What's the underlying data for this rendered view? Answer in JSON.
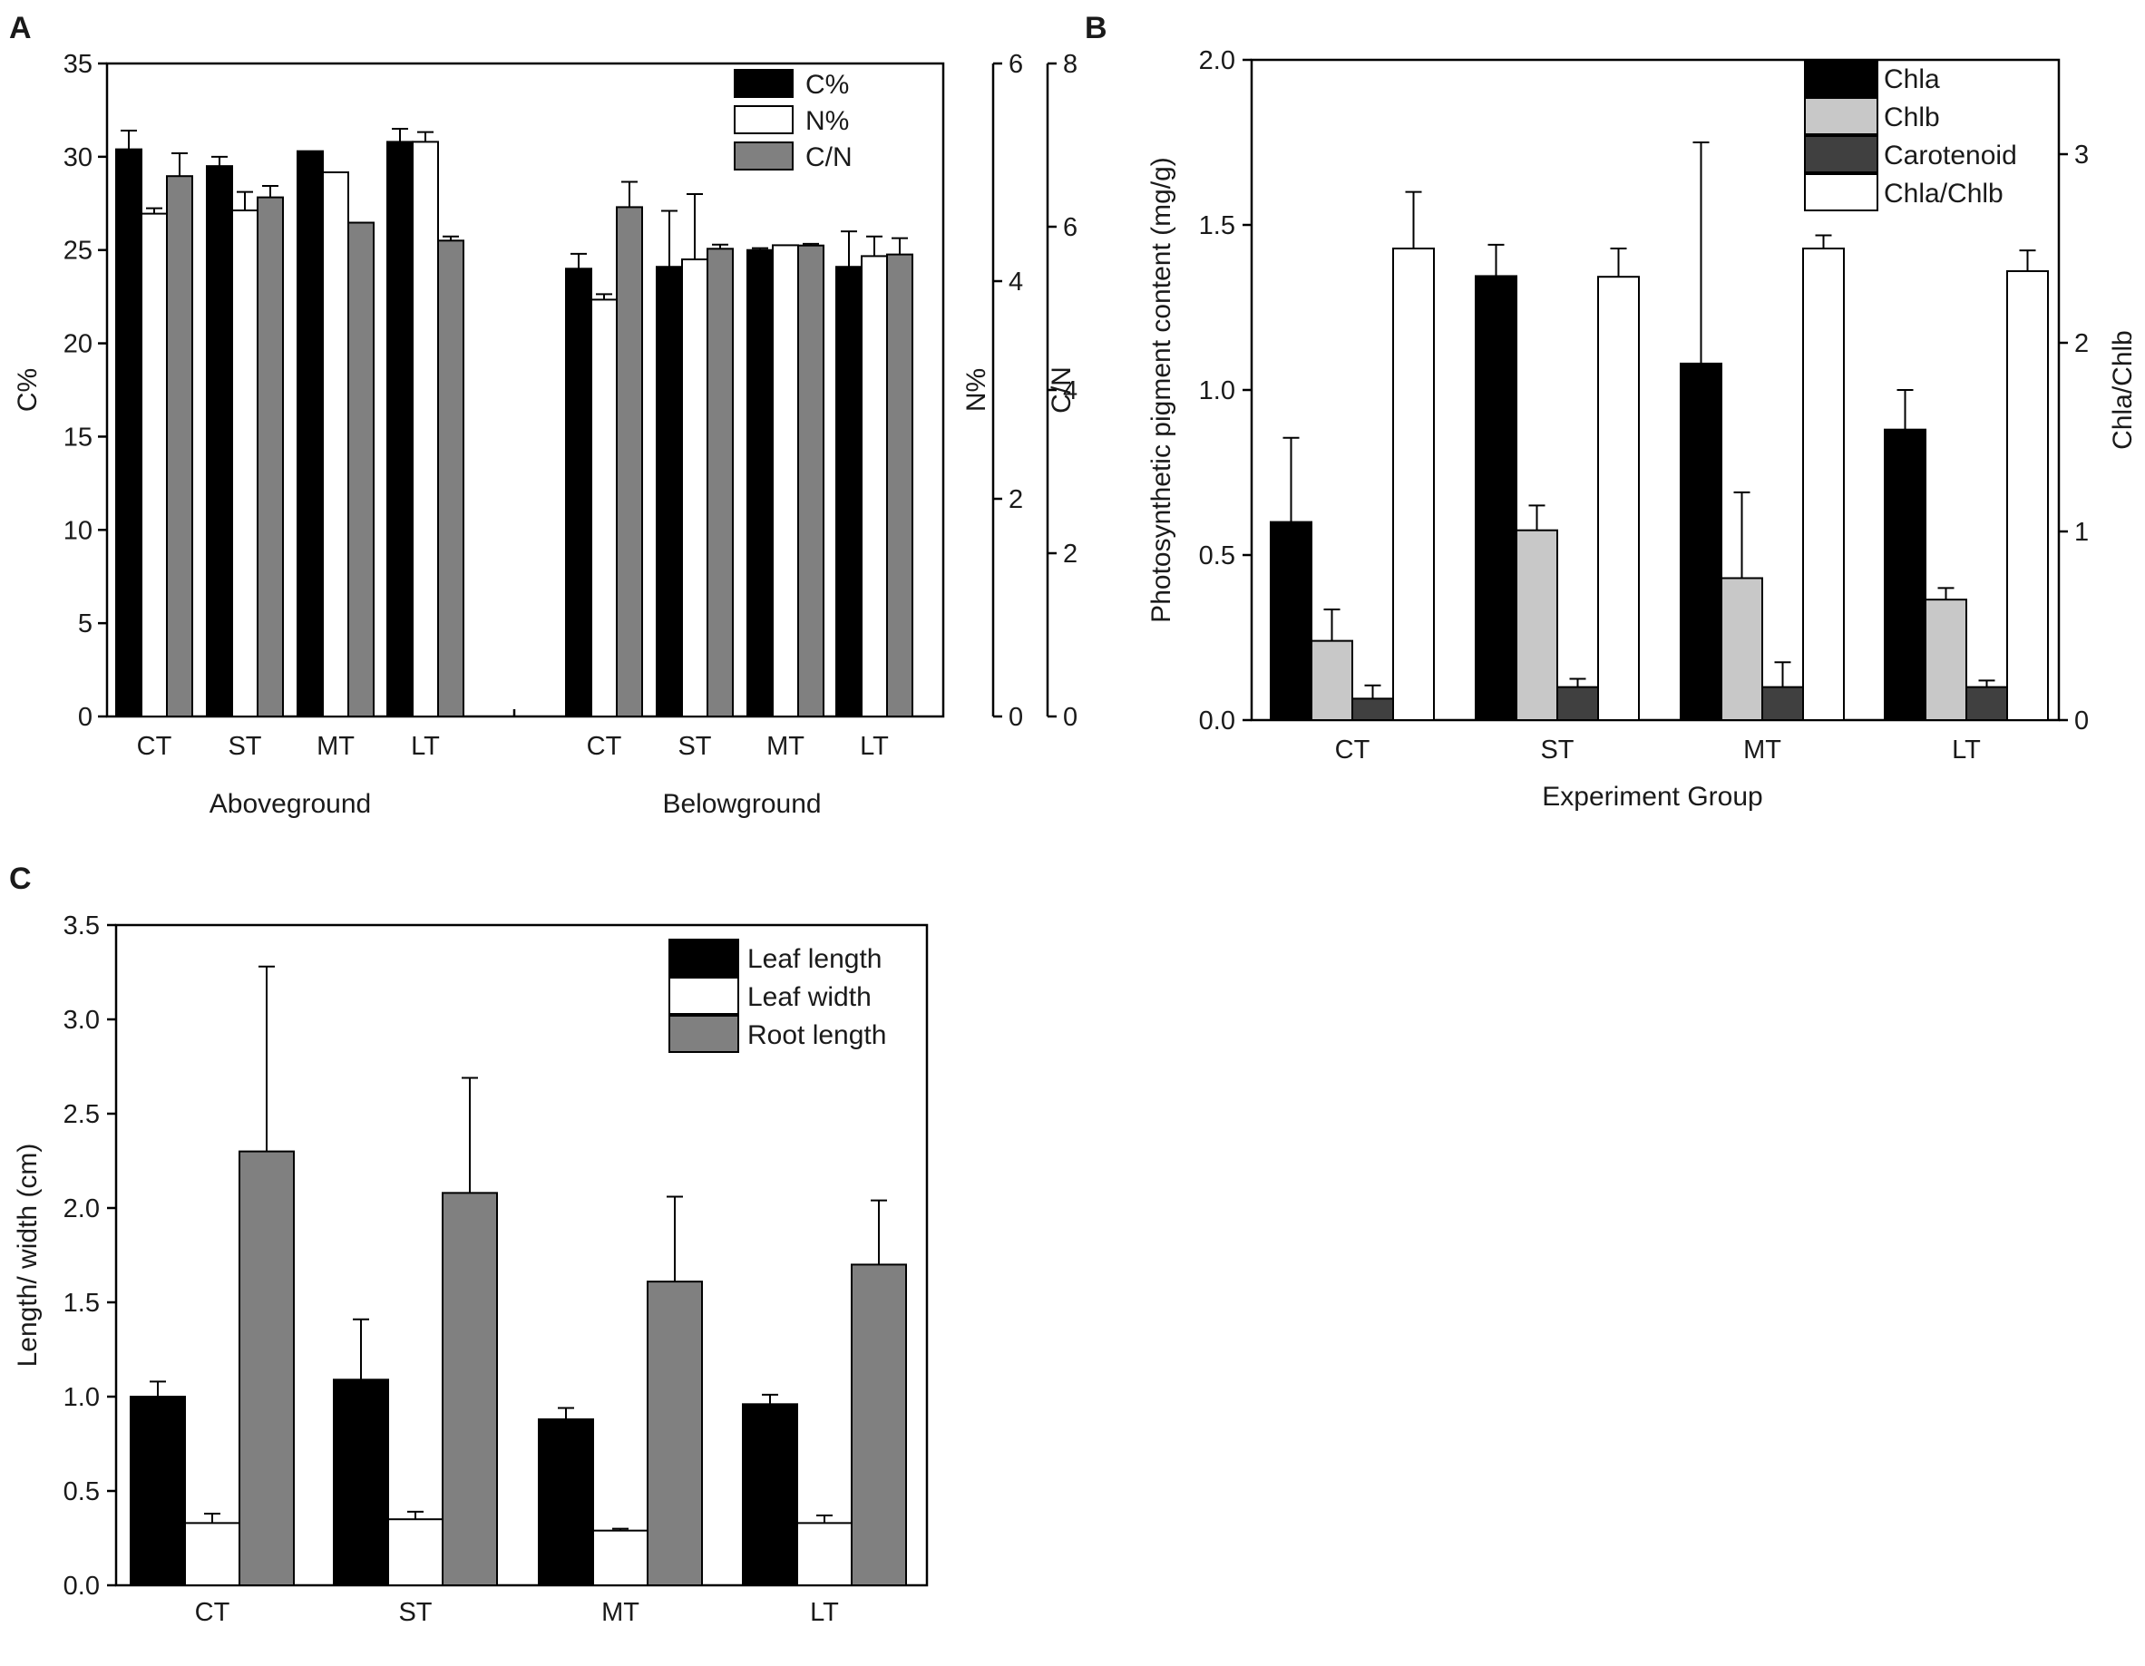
{
  "chart_data": [
    {
      "panel": "A",
      "type": "bar",
      "groups": [
        {
          "label": "Aboveground",
          "categories": [
            "CT",
            "ST",
            "MT",
            "LT"
          ]
        },
        {
          "label": "Belowground",
          "categories": [
            "CT",
            "ST",
            "MT",
            "LT"
          ]
        }
      ],
      "series": [
        {
          "name": "C%",
          "axis": "C%",
          "color": "#000000",
          "values": [
            30.4,
            29.5,
            30.3,
            30.8,
            24.0,
            24.1,
            25.0,
            24.1
          ],
          "errors": [
            1.0,
            0.5,
            0.0,
            0.7,
            0.8,
            3.0,
            0.1,
            1.9
          ]
        },
        {
          "name": "N%",
          "axis": "N%",
          "color": "#ffffff",
          "values": [
            4.62,
            4.65,
            5.0,
            5.28,
            3.83,
            4.2,
            4.33,
            4.23
          ],
          "errors": [
            0.05,
            0.17,
            0.0,
            0.09,
            0.05,
            0.6,
            0.0,
            0.18
          ]
        },
        {
          "name": "C/N",
          "axis": "C/N",
          "color": "#808080",
          "values": [
            6.62,
            6.36,
            6.05,
            5.83,
            6.24,
            5.73,
            5.77,
            5.66
          ],
          "errors": [
            0.28,
            0.14,
            0.0,
            0.05,
            0.31,
            0.05,
            0.02,
            0.2
          ]
        }
      ],
      "axes": {
        "left": {
          "label": "C%",
          "ylim": [
            0,
            35
          ],
          "ticks": [
            "0",
            "5",
            "10",
            "15",
            "20",
            "25",
            "30",
            "35"
          ]
        },
        "right1": {
          "label": "N%",
          "ylim": [
            0,
            6
          ],
          "ticks": [
            "0",
            "2",
            "4",
            "6"
          ]
        },
        "right2": {
          "label": "C/N",
          "ylim": [
            0,
            8
          ],
          "ticks": [
            "0",
            "2",
            "4",
            "6",
            "8"
          ]
        }
      },
      "legend_position": "top-right"
    },
    {
      "panel": "B",
      "type": "bar",
      "categories": [
        "CT",
        "ST",
        "MT",
        "LT"
      ],
      "series": [
        {
          "name": "Chla",
          "axis": "left",
          "color": "#000000",
          "values": [
            0.6,
            1.345,
            1.08,
            0.88
          ],
          "errors": [
            0.255,
            0.095,
            0.67,
            0.12
          ]
        },
        {
          "name": "Chlb",
          "axis": "left",
          "color": "#c8c8c8",
          "values": [
            0.24,
            0.575,
            0.43,
            0.365
          ],
          "errors": [
            0.095,
            0.075,
            0.26,
            0.035
          ]
        },
        {
          "name": "Carotenoid",
          "axis": "left",
          "color": "#404040",
          "values": [
            0.065,
            0.1,
            0.1,
            0.1
          ],
          "errors": [
            0.04,
            0.025,
            0.075,
            0.02
          ]
        },
        {
          "name": "Chla/Chlb",
          "axis": "right",
          "color": "#ffffff",
          "values": [
            2.5,
            2.35,
            2.5,
            2.38
          ],
          "errors": [
            0.3,
            0.15,
            0.07,
            0.11
          ]
        }
      ],
      "xlabel": "Experiment Group",
      "ylabel": "Photosynthetic pigment content (mg/g)",
      "ylabel_right": "Chla/Chlb",
      "ylim": [
        0,
        2.0
      ],
      "ylim_right": [
        0,
        3.5
      ],
      "yticks": [
        "0.0",
        "0.5",
        "1.0",
        "1.5",
        "2.0"
      ],
      "yticks_right": [
        "0",
        "1",
        "2",
        "3"
      ],
      "legend_position": "top-right"
    },
    {
      "panel": "C",
      "type": "bar",
      "categories": [
        "CT",
        "ST",
        "MT",
        "LT"
      ],
      "series": [
        {
          "name": "Leaf length",
          "color": "#000000",
          "values": [
            1.0,
            1.09,
            0.88,
            0.96
          ],
          "errors": [
            0.08,
            0.32,
            0.06,
            0.05
          ]
        },
        {
          "name": "Leaf width",
          "color": "#ffffff",
          "values": [
            0.33,
            0.35,
            0.29,
            0.33
          ],
          "errors": [
            0.05,
            0.04,
            0.01,
            0.04
          ]
        },
        {
          "name": "Root length",
          "color": "#808080",
          "values": [
            2.3,
            2.08,
            1.61,
            1.7
          ],
          "errors": [
            0.98,
            0.61,
            0.45,
            0.34
          ]
        }
      ],
      "xlabel": "",
      "ylabel": "Length/ width (cm)",
      "ylim": [
        0,
        3.5
      ],
      "yticks": [
        "0.0",
        "0.5",
        "1.0",
        "1.5",
        "2.0",
        "2.5",
        "3.0",
        "3.5"
      ],
      "legend_position": "top-right"
    }
  ]
}
